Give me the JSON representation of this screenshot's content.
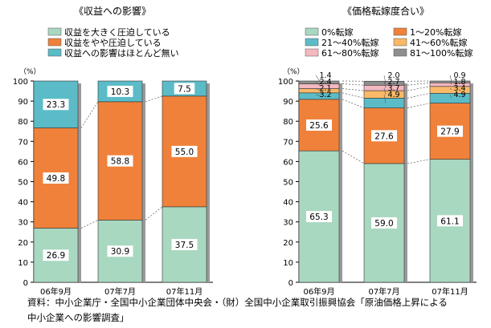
{
  "chart_data": [
    {
      "type": "bar",
      "stacked": true,
      "title": "《収益への影響》",
      "unit_label": "（%）",
      "categories": [
        "06年9月",
        "07年7月",
        "07年11月"
      ],
      "ylim": [
        0,
        100
      ],
      "yticks": [
        0,
        10,
        20,
        30,
        40,
        50,
        60,
        70,
        80,
        90,
        100
      ],
      "legend_position": "top",
      "series": [
        {
          "name": "収益を大きく圧迫している",
          "color": "#a8d8c0",
          "values": [
            26.9,
            30.9,
            37.5
          ]
        },
        {
          "name": "収益をやや圧迫している",
          "color": "#f0813a",
          "values": [
            49.8,
            58.8,
            55.0
          ]
        },
        {
          "name": "収益への影響はほとんど無い",
          "color": "#5bbcc8",
          "values": [
            23.3,
            10.3,
            7.5
          ]
        }
      ]
    },
    {
      "type": "bar",
      "stacked": true,
      "title": "《価格転嫁度合い》",
      "unit_label": "（%）",
      "categories": [
        "06年9月",
        "07年7月",
        "07年11月"
      ],
      "ylim": [
        0,
        100
      ],
      "yticks": [
        0,
        10,
        20,
        30,
        40,
        50,
        60,
        70,
        80,
        90,
        100
      ],
      "legend_position": "top",
      "series": [
        {
          "name": "0%転嫁",
          "color": "#a8d8c0",
          "values": [
            65.3,
            59.0,
            61.1
          ]
        },
        {
          "name": "1～20%転嫁",
          "color": "#f0813a",
          "values": [
            25.6,
            27.6,
            27.9
          ]
        },
        {
          "name": "21～40%転嫁",
          "color": "#5bbcc8",
          "values": [
            3.2,
            4.9,
            4.9
          ]
        },
        {
          "name": "41～60%転嫁",
          "color": "#f9b968",
          "values": [
            2.1,
            3.7,
            3.4
          ]
        },
        {
          "name": "61～80%転嫁",
          "color": "#f4b8c0",
          "values": [
            2.4,
            2.7,
            1.8
          ]
        },
        {
          "name": "81～100%転嫁",
          "color": "#8e8e8e",
          "values": [
            1.4,
            2.0,
            0.9
          ]
        }
      ]
    }
  ],
  "source": "資料：中小企業庁・全国中小企業団体中央会・（財）全国中小企業取引振興協会「原油価格上昇による\n中小企業への影響調査」"
}
